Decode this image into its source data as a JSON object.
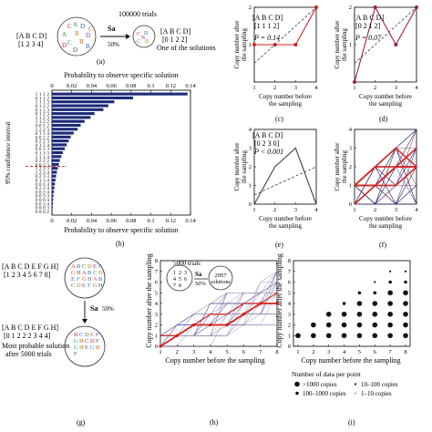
{
  "panel_labels": {
    "a": "(a)",
    "b": "(b)",
    "c": "(c)",
    "d": "(d)",
    "e": "(e)",
    "f": "(f)",
    "g": "(g)",
    "h": "(h)",
    "i": "(i)"
  },
  "panel_a": {
    "matrix_line1": "[A B C D]",
    "matrix_line2": "[1 2 3 4]",
    "trials": "100000 trials",
    "op": "Sa",
    "pct": "50%",
    "result_line1": "[A B C D]",
    "result_line2": "[0 1 2 2]",
    "caption": "One of the solutions",
    "circle1_letters": [
      "C",
      "D",
      "A",
      "B",
      "D",
      "C",
      "B",
      "D",
      "D",
      "B",
      "A",
      "C"
    ],
    "circle2_letters": [
      "C",
      "D",
      "C",
      "D",
      "B"
    ]
  },
  "panel_c": {
    "line1": "[A B C D]",
    "line2": "[1 1 1 2]",
    "pval": "P = 0.14"
  },
  "panel_d": {
    "line1": "[A B C D]",
    "line2": "[0 2 1 2]",
    "pval": "P = 0.07"
  },
  "panel_e": {
    "line1": "[A B C D]",
    "line2": "[0 2 3 0]",
    "pval": "P < 0.001"
  },
  "small_axes": {
    "ylabel1": "Copy number after",
    "ylabel2": "the sampling",
    "xlabel1": "Copy number before",
    "xlabel2": "the sampling"
  },
  "panel_g": {
    "matrix_line1": "[A B C D E F G H]",
    "matrix_line2": "[1 2 3 4 5 6 7 8]",
    "op": "Sa",
    "pct": "50%",
    "result_line1": "[A B C D E F G H]",
    "result_line2": "[0 1 2 2 2 3 4 4]",
    "caption1": "Most probable solution",
    "caption2": "after 5000 trials"
  },
  "panel_h": {
    "trials": "5000 trials",
    "grid": [
      "1",
      "2",
      "3",
      "4",
      "5",
      "6",
      "7",
      "8"
    ],
    "op": "Sa",
    "pct": "50%",
    "solutions1": "2957",
    "solutions2": "solutions"
  },
  "panel_i": {
    "legend_title": "Number of data per point",
    "legend_items": [
      ">1000 copies",
      "100–1000 copies",
      "10–100 copies",
      "1–10 copies"
    ]
  },
  "chart_data": [
    {
      "type": "bar",
      "orientation": "horizontal",
      "id": "b",
      "title": "Probability to observe specific solution",
      "xlabel": "Probability to observe specific solution",
      "ylabel": "95% confidence interval",
      "xlim": [
        0,
        0.14
      ],
      "xticks": [
        "0",
        "0.02",
        "0.04",
        "0.06",
        "0.08",
        "0.1",
        "0.12",
        "0.14"
      ],
      "categories": [
        "1 1 1 2",
        "0 1 1 2",
        "1 1 1 3",
        "0 1 2 2",
        "0 1 1 3",
        "0 1 2 3",
        "1 1 2 3",
        "1 1 2 2",
        "0 0 1 2",
        "1 2 2 3",
        "0 1 1 4",
        "0 0 2 2",
        "0 2 2 3",
        "0 1 2 4",
        "0 0 1 3",
        "0 1 3 3",
        "1 1 1 4",
        "0 2 2 2",
        "0 0 2 3",
        "1 2 3 3",
        "1 2 2 4",
        "0 2 3 3",
        "0 1 3 4",
        "0 0 1 4",
        "0 2 2 4",
        "0 0 2 4",
        "0 0 3 3",
        "0 0 0 4",
        "0 0 3 4",
        "0 0 0 3",
        "0 0 0 2"
      ],
      "values": [
        0.137,
        0.082,
        0.063,
        0.057,
        0.052,
        0.043,
        0.039,
        0.033,
        0.029,
        0.026,
        0.022,
        0.019,
        0.017,
        0.015,
        0.013,
        0.011,
        0.0095,
        0.008,
        0.007,
        0.006,
        0.005,
        0.0042,
        0.0035,
        0.003,
        0.0025,
        0.002,
        0.0015,
        0.0012,
        0.001,
        0.0007,
        0.0004
      ],
      "threshold_category_index": 19,
      "grid": false
    },
    {
      "type": "line",
      "id": "c",
      "xlim": [
        1,
        4
      ],
      "ylim": [
        0,
        2
      ],
      "x": [
        1,
        2,
        3,
        4
      ],
      "series": [
        {
          "values": [
            1,
            1,
            1,
            2
          ],
          "color": "#d62020"
        },
        {
          "values": [
            0.5,
            1,
            1.5,
            2
          ],
          "style": "dashed",
          "color": "#444444"
        }
      ]
    },
    {
      "type": "line",
      "id": "d",
      "xlim": [
        1,
        4
      ],
      "ylim": [
        0,
        2
      ],
      "x": [
        1,
        2,
        3,
        4
      ],
      "series": [
        {
          "values": [
            0,
            2,
            1,
            2
          ],
          "color": "#a0203a"
        },
        {
          "values": [
            0.5,
            1,
            1.5,
            2
          ],
          "style": "dashed",
          "color": "#444444"
        }
      ]
    },
    {
      "type": "line",
      "id": "e",
      "xlim": [
        1,
        4
      ],
      "ylim": [
        0,
        4
      ],
      "x": [
        1,
        2,
        3,
        4
      ],
      "series": [
        {
          "values": [
            0,
            2,
            3,
            0
          ],
          "color": "#444444"
        },
        {
          "values": [
            0.5,
            1,
            1.5,
            2
          ],
          "style": "dashed",
          "color": "#444444"
        }
      ]
    },
    {
      "type": "line",
      "id": "f",
      "xlim": [
        1,
        4
      ],
      "ylim": [
        0,
        4
      ],
      "x": [
        1,
        2,
        3,
        4
      ],
      "xticks": [
        "1",
        "2",
        "3",
        "4"
      ],
      "yticks": [
        "0",
        "1",
        "2",
        "3",
        "4"
      ]
    },
    {
      "type": "line",
      "id": "h",
      "xlim": [
        1,
        8
      ],
      "ylim": [
        0,
        8
      ],
      "xticks": [
        "1",
        "2",
        "3",
        "4",
        "5",
        "6",
        "7",
        "8"
      ],
      "yticks": [
        "0",
        "1",
        "2",
        "3",
        "4",
        "5",
        "6",
        "7",
        "8"
      ],
      "xlabel": "Copy number before the sampling",
      "ylabel": "Copy number after the sampling"
    },
    {
      "type": "scatter",
      "id": "i",
      "xlim": [
        1,
        8
      ],
      "ylim": [
        0,
        8
      ],
      "xticks": [
        "1",
        "2",
        "3",
        "4",
        "5",
        "6",
        "7",
        "8"
      ],
      "yticks": [
        "0",
        "1",
        "2",
        "3",
        "4",
        "5",
        "6",
        "7",
        "8"
      ],
      "xlabel": "Copy number before the sampling",
      "ylabel": "Copy number after the sampling",
      "points": [
        {
          "x": 1,
          "y": 1,
          "s": 3
        },
        {
          "x": 2,
          "y": 1,
          "s": 3
        },
        {
          "x": 3,
          "y": 1,
          "s": 3
        },
        {
          "x": 4,
          "y": 1,
          "s": 3
        },
        {
          "x": 5,
          "y": 1,
          "s": 3
        },
        {
          "x": 6,
          "y": 1,
          "s": 3
        },
        {
          "x": 7,
          "y": 1,
          "s": 3
        },
        {
          "x": 8,
          "y": 1,
          "s": 3
        },
        {
          "x": 2,
          "y": 2,
          "s": 3
        },
        {
          "x": 3,
          "y": 2,
          "s": 3
        },
        {
          "x": 4,
          "y": 2,
          "s": 3
        },
        {
          "x": 5,
          "y": 2,
          "s": 3
        },
        {
          "x": 6,
          "y": 2,
          "s": 3
        },
        {
          "x": 7,
          "y": 2,
          "s": 3
        },
        {
          "x": 8,
          "y": 2,
          "s": 3
        },
        {
          "x": 3,
          "y": 3,
          "s": 3
        },
        {
          "x": 4,
          "y": 3,
          "s": 3
        },
        {
          "x": 5,
          "y": 3,
          "s": 3
        },
        {
          "x": 6,
          "y": 3,
          "s": 3
        },
        {
          "x": 7,
          "y": 3,
          "s": 3
        },
        {
          "x": 8,
          "y": 3,
          "s": 3
        },
        {
          "x": 4,
          "y": 4,
          "s": 2
        },
        {
          "x": 5,
          "y": 4,
          "s": 3
        },
        {
          "x": 6,
          "y": 4,
          "s": 3
        },
        {
          "x": 7,
          "y": 4,
          "s": 3
        },
        {
          "x": 8,
          "y": 4,
          "s": 3
        },
        {
          "x": 5,
          "y": 5,
          "s": 2
        },
        {
          "x": 6,
          "y": 5,
          "s": 2
        },
        {
          "x": 7,
          "y": 5,
          "s": 3
        },
        {
          "x": 8,
          "y": 5,
          "s": 3
        },
        {
          "x": 6,
          "y": 6,
          "s": 1
        },
        {
          "x": 7,
          "y": 6,
          "s": 2
        },
        {
          "x": 8,
          "y": 6,
          "s": 2
        },
        {
          "x": 7,
          "y": 7,
          "s": 1
        },
        {
          "x": 8,
          "y": 7,
          "s": 1
        },
        {
          "x": 8,
          "y": 8,
          "s": 0
        }
      ]
    }
  ]
}
